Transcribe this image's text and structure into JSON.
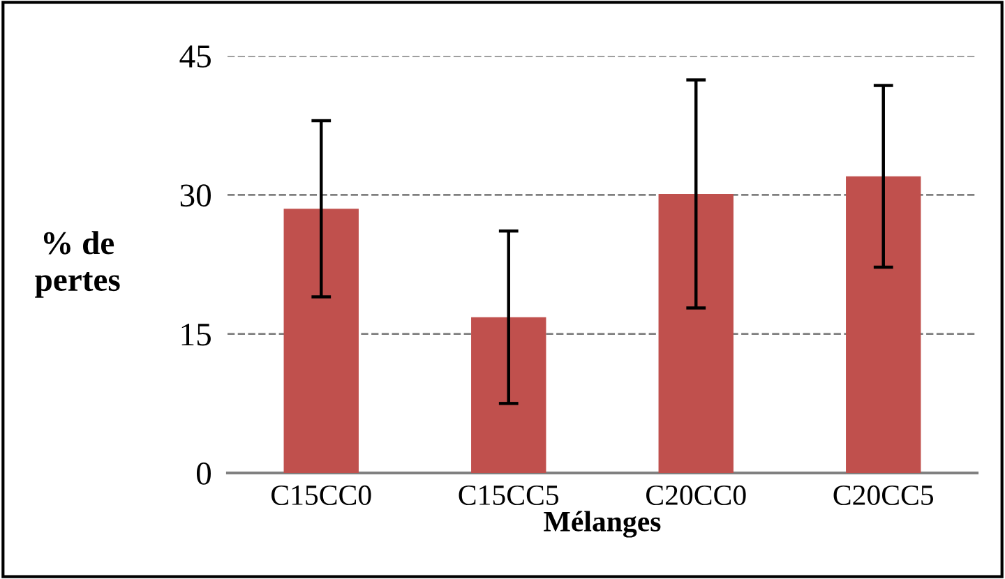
{
  "chart_data": {
    "type": "bar",
    "xlabel": "Mélanges",
    "ylabel": "% de\npertes",
    "categories": [
      "C15CC0",
      "C15CC5",
      "C20CC0",
      "C20CC5"
    ],
    "values": [
      28.5,
      16.8,
      30.1,
      32.0
    ],
    "errors": [
      9.5,
      9.3,
      12.3,
      9.8
    ],
    "color": "#c0504d",
    "ylim": [
      0,
      45
    ],
    "yticks": [
      0,
      15,
      30,
      45
    ],
    "grid": "y"
  }
}
